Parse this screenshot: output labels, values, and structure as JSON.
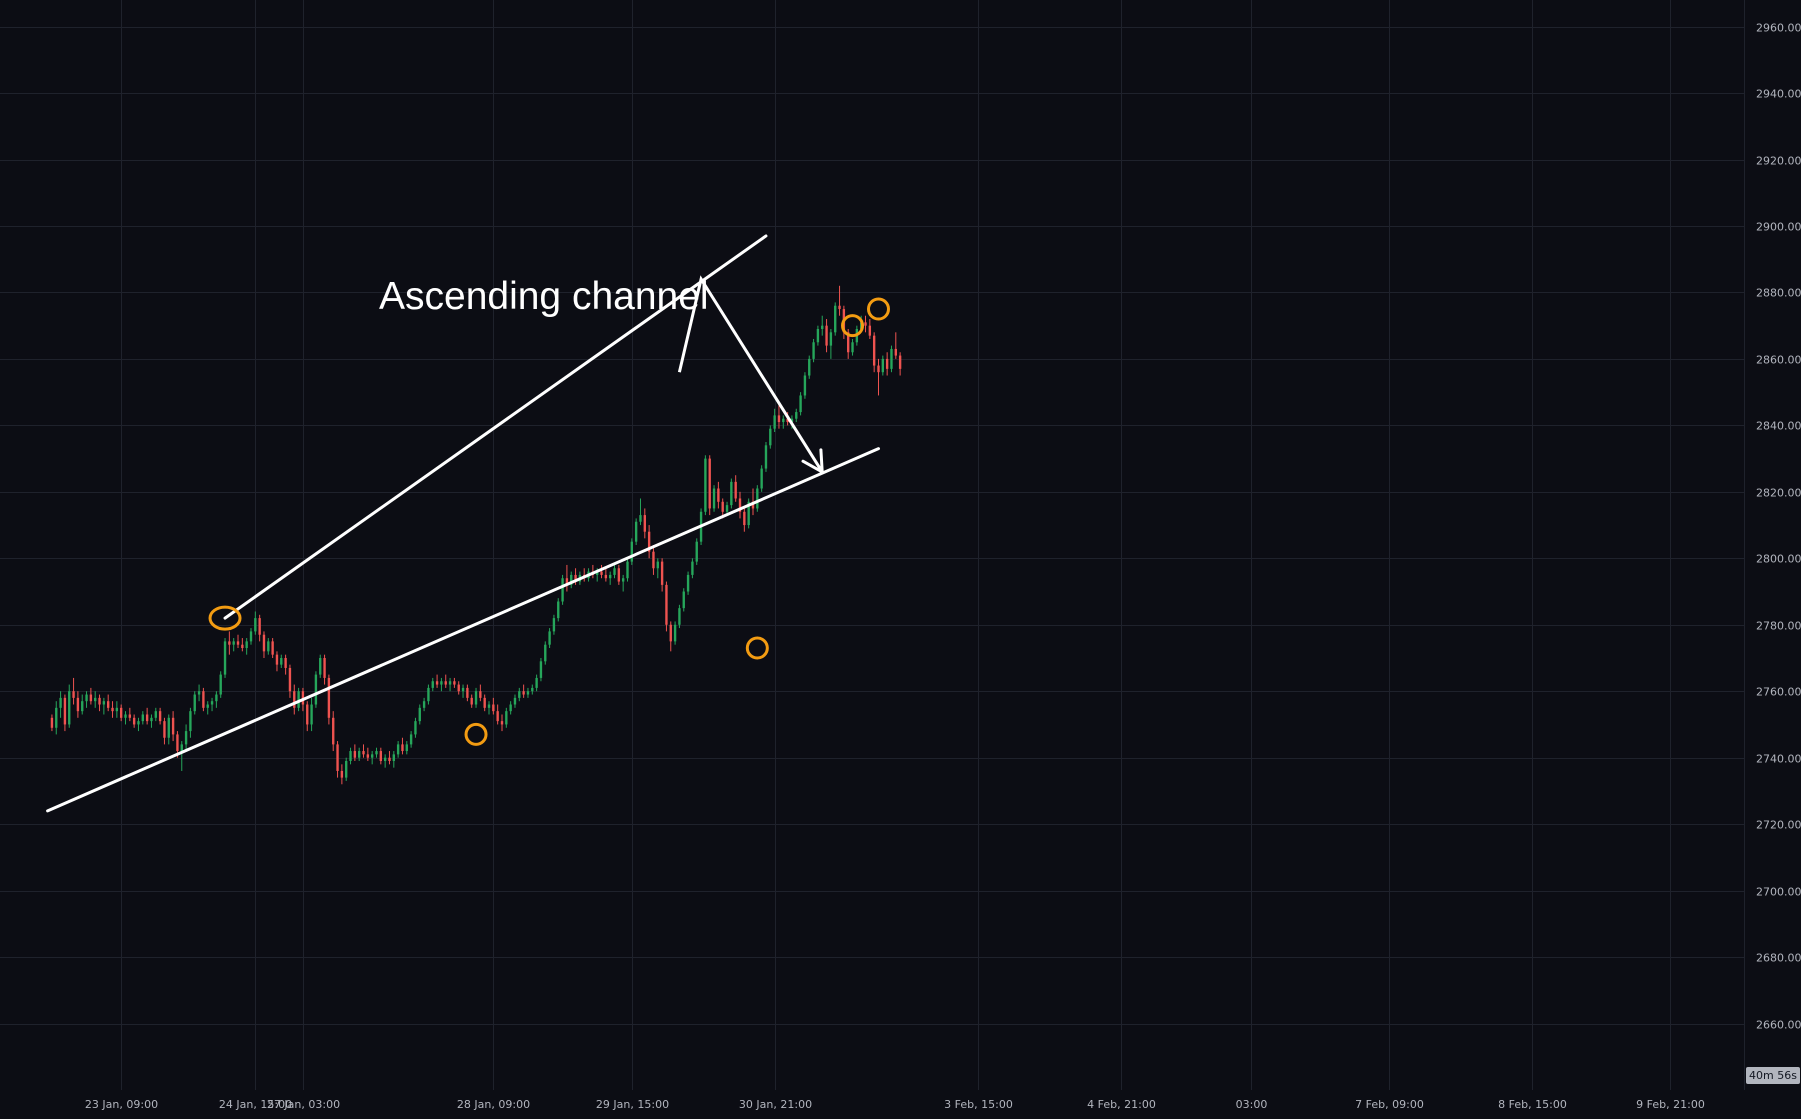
{
  "chart_data": {
    "type": "candlestick",
    "annotation": "Ascending channel",
    "countdown": "40m 56s",
    "colors": {
      "background": "#0c0d14",
      "grid": "#1f222c",
      "up": "#26a65b",
      "down": "#ef5350",
      "drawing": "#ffffff",
      "marker": "#f39c12",
      "axis_text": "#b2b5be",
      "countdown_bg": "#b2b5be"
    },
    "ylim": [
      2640,
      2968
    ],
    "y_ticks": [
      2660,
      2680,
      2700,
      2720,
      2740,
      2760,
      2780,
      2800,
      2820,
      2840,
      2860,
      2880,
      2900,
      2920,
      2940,
      2960
    ],
    "y_tick_labels": [
      "2660.00",
      "2680.00",
      "2700.00",
      "2720.00",
      "2740.00",
      "2760.00",
      "2780.00",
      "2800.00",
      "2820.00",
      "2840.00",
      "2860.00",
      "2880.00",
      "2900.00",
      "2920.00",
      "2940.00",
      "2960.00"
    ],
    "x_ticks": [
      "23 Jan, 09:00",
      "24 Jan, 15:00",
      "27 Jan, 03:00",
      "28 Jan, 09:00",
      "29 Jan, 15:00",
      "30 Jan, 21:00",
      "3 Feb, 15:00",
      "4 Feb, 21:00",
      "03:00",
      "7 Feb, 09:00",
      "8 Feb, 15:00",
      "9 Feb, 21:00"
    ],
    "x_tick_bars": [
      16,
      47,
      58,
      102,
      134,
      167,
      214,
      247,
      277,
      309,
      342,
      374
    ],
    "x_range": [
      -12,
      391
    ],
    "ohlc": [
      [
        2752,
        2753,
        2748,
        2749
      ],
      [
        2749,
        2757,
        2747,
        2755
      ],
      [
        2755,
        2760,
        2752,
        2758
      ],
      [
        2758,
        2759,
        2748,
        2750
      ],
      [
        2750,
        2762,
        2749,
        2760
      ],
      [
        2760,
        2764,
        2756,
        2758
      ],
      [
        2758,
        2760,
        2752,
        2754
      ],
      [
        2754,
        2759,
        2753,
        2757
      ],
      [
        2757,
        2760,
        2755,
        2759
      ],
      [
        2759,
        2761,
        2756,
        2757
      ],
      [
        2757,
        2760,
        2755,
        2758
      ],
      [
        2758,
        2759,
        2754,
        2756
      ],
      [
        2756,
        2758,
        2753,
        2757
      ],
      [
        2757,
        2759,
        2754,
        2755
      ],
      [
        2755,
        2757,
        2752,
        2754
      ],
      [
        2754,
        2757,
        2752,
        2755
      ],
      [
        2755,
        2756,
        2751,
        2752
      ],
      [
        2752,
        2754,
        2750,
        2753
      ],
      [
        2753,
        2755,
        2751,
        2752
      ],
      [
        2752,
        2753,
        2749,
        2750
      ],
      [
        2750,
        2752,
        2748,
        2751
      ],
      [
        2751,
        2754,
        2750,
        2753
      ],
      [
        2753,
        2755,
        2750,
        2751
      ],
      [
        2751,
        2753,
        2749,
        2752
      ],
      [
        2752,
        2755,
        2751,
        2754
      ],
      [
        2754,
        2755,
        2750,
        2751
      ],
      [
        2751,
        2752,
        2744,
        2746
      ],
      [
        2746,
        2753,
        2744,
        2752
      ],
      [
        2752,
        2754,
        2745,
        2747
      ],
      [
        2747,
        2748,
        2740,
        2742
      ],
      [
        2742,
        2745,
        2736,
        2744
      ],
      [
        2744,
        2750,
        2742,
        2748
      ],
      [
        2748,
        2755,
        2746,
        2754
      ],
      [
        2754,
        2760,
        2753,
        2759
      ],
      [
        2759,
        2762,
        2757,
        2760
      ],
      [
        2760,
        2761,
        2754,
        2755
      ],
      [
        2755,
        2757,
        2753,
        2756
      ],
      [
        2756,
        2758,
        2754,
        2757
      ],
      [
        2757,
        2760,
        2755,
        2759
      ],
      [
        2759,
        2766,
        2758,
        2765
      ],
      [
        2765,
        2776,
        2764,
        2775
      ],
      [
        2775,
        2778,
        2771,
        2774
      ],
      [
        2774,
        2776,
        2772,
        2775
      ],
      [
        2775,
        2777,
        2773,
        2774
      ],
      [
        2774,
        2776,
        2772,
        2773
      ],
      [
        2773,
        2776,
        2771,
        2775
      ],
      [
        2775,
        2779,
        2774,
        2778
      ],
      [
        2778,
        2784,
        2777,
        2782
      ],
      [
        2782,
        2783,
        2775,
        2777
      ],
      [
        2777,
        2778,
        2770,
        2772
      ],
      [
        2772,
        2776,
        2771,
        2775
      ],
      [
        2775,
        2776,
        2770,
        2771
      ],
      [
        2771,
        2772,
        2766,
        2768
      ],
      [
        2768,
        2771,
        2767,
        2770
      ],
      [
        2770,
        2771,
        2765,
        2767
      ],
      [
        2767,
        2768,
        2758,
        2760
      ],
      [
        2760,
        2762,
        2753,
        2755
      ],
      [
        2755,
        2761,
        2754,
        2760
      ],
      [
        2760,
        2761,
        2754,
        2756
      ],
      [
        2756,
        2757,
        2748,
        2750
      ],
      [
        2750,
        2758,
        2748,
        2756
      ],
      [
        2756,
        2766,
        2755,
        2765
      ],
      [
        2765,
        2771,
        2764,
        2770
      ],
      [
        2770,
        2771,
        2762,
        2764
      ],
      [
        2764,
        2765,
        2750,
        2752
      ],
      [
        2752,
        2754,
        2742,
        2744
      ],
      [
        2744,
        2745,
        2734,
        2736
      ],
      [
        2736,
        2738,
        2732,
        2734
      ],
      [
        2734,
        2740,
        2733,
        2739
      ],
      [
        2739,
        2743,
        2738,
        2742
      ],
      [
        2742,
        2744,
        2739,
        2740
      ],
      [
        2740,
        2743,
        2739,
        2742
      ],
      [
        2742,
        2744,
        2740,
        2741
      ],
      [
        2741,
        2743,
        2739,
        2740
      ],
      [
        2740,
        2742,
        2738,
        2741
      ],
      [
        2741,
        2743,
        2740,
        2742
      ],
      [
        2742,
        2743,
        2738,
        2739
      ],
      [
        2739,
        2741,
        2737,
        2740
      ],
      [
        2740,
        2742,
        2738,
        2739
      ],
      [
        2739,
        2742,
        2737,
        2741
      ],
      [
        2741,
        2745,
        2740,
        2744
      ],
      [
        2744,
        2746,
        2741,
        2742
      ],
      [
        2742,
        2745,
        2741,
        2744
      ],
      [
        2744,
        2748,
        2743,
        2747
      ],
      [
        2747,
        2752,
        2746,
        2751
      ],
      [
        2751,
        2756,
        2750,
        2755
      ],
      [
        2755,
        2758,
        2754,
        2757
      ],
      [
        2757,
        2762,
        2756,
        2761
      ],
      [
        2761,
        2764,
        2760,
        2763
      ],
      [
        2763,
        2765,
        2761,
        2762
      ],
      [
        2762,
        2764,
        2760,
        2763
      ],
      [
        2763,
        2765,
        2761,
        2762
      ],
      [
        2762,
        2764,
        2760,
        2763
      ],
      [
        2763,
        2764,
        2761,
        2762
      ],
      [
        2762,
        2763,
        2759,
        2760
      ],
      [
        2760,
        2762,
        2758,
        2761
      ],
      [
        2761,
        2762,
        2757,
        2758
      ],
      [
        2758,
        2759,
        2755,
        2756
      ],
      [
        2756,
        2761,
        2755,
        2760
      ],
      [
        2760,
        2762,
        2757,
        2758
      ],
      [
        2758,
        2759,
        2754,
        2755
      ],
      [
        2755,
        2757,
        2753,
        2756
      ],
      [
        2756,
        2758,
        2753,
        2754
      ],
      [
        2754,
        2756,
        2750,
        2751
      ],
      [
        2751,
        2753,
        2748,
        2750
      ],
      [
        2750,
        2755,
        2749,
        2754
      ],
      [
        2754,
        2757,
        2753,
        2756
      ],
      [
        2756,
        2759,
        2755,
        2758
      ],
      [
        2758,
        2761,
        2757,
        2760
      ],
      [
        2760,
        2762,
        2758,
        2759
      ],
      [
        2759,
        2761,
        2758,
        2760
      ],
      [
        2760,
        2762,
        2759,
        2761
      ],
      [
        2761,
        2765,
        2760,
        2764
      ],
      [
        2764,
        2770,
        2763,
        2769
      ],
      [
        2769,
        2775,
        2768,
        2774
      ],
      [
        2774,
        2779,
        2773,
        2778
      ],
      [
        2778,
        2783,
        2777,
        2782
      ],
      [
        2782,
        2788,
        2781,
        2787
      ],
      [
        2787,
        2795,
        2786,
        2794
      ],
      [
        2794,
        2798,
        2790,
        2792
      ],
      [
        2792,
        2796,
        2791,
        2795
      ],
      [
        2795,
        2797,
        2792,
        2793
      ],
      [
        2793,
        2796,
        2792,
        2795
      ],
      [
        2795,
        2797,
        2793,
        2794
      ],
      [
        2794,
        2797,
        2793,
        2796
      ],
      [
        2796,
        2798,
        2794,
        2795
      ],
      [
        2795,
        2797,
        2793,
        2796
      ],
      [
        2796,
        2798,
        2794,
        2795
      ],
      [
        2795,
        2797,
        2793,
        2794
      ],
      [
        2794,
        2796,
        2792,
        2795
      ],
      [
        2795,
        2798,
        2794,
        2797
      ],
      [
        2797,
        2798,
        2792,
        2793
      ],
      [
        2793,
        2795,
        2790,
        2794
      ],
      [
        2794,
        2800,
        2793,
        2799
      ],
      [
        2799,
        2806,
        2798,
        2805
      ],
      [
        2805,
        2812,
        2804,
        2811
      ],
      [
        2811,
        2818,
        2810,
        2813
      ],
      [
        2813,
        2815,
        2806,
        2808
      ],
      [
        2808,
        2810,
        2800,
        2802
      ],
      [
        2802,
        2804,
        2795,
        2797
      ],
      [
        2797,
        2800,
        2794,
        2799
      ],
      [
        2799,
        2800,
        2790,
        2792
      ],
      [
        2792,
        2793,
        2778,
        2780
      ],
      [
        2780,
        2781,
        2772,
        2775
      ],
      [
        2775,
        2781,
        2774,
        2780
      ],
      [
        2780,
        2786,
        2779,
        2785
      ],
      [
        2785,
        2791,
        2784,
        2790
      ],
      [
        2790,
        2796,
        2789,
        2795
      ],
      [
        2795,
        2800,
        2794,
        2799
      ],
      [
        2799,
        2806,
        2798,
        2805
      ],
      [
        2805,
        2815,
        2804,
        2814
      ],
      [
        2814,
        2831,
        2813,
        2830
      ],
      [
        2830,
        2831,
        2813,
        2815
      ],
      [
        2815,
        2822,
        2814,
        2821
      ],
      [
        2821,
        2823,
        2815,
        2817
      ],
      [
        2817,
        2818,
        2812,
        2814
      ],
      [
        2814,
        2817,
        2813,
        2816
      ],
      [
        2816,
        2824,
        2815,
        2823
      ],
      [
        2823,
        2825,
        2817,
        2818
      ],
      [
        2818,
        2820,
        2812,
        2814
      ],
      [
        2814,
        2815,
        2808,
        2810
      ],
      [
        2810,
        2818,
        2809,
        2817
      ],
      [
        2817,
        2821,
        2813,
        2815
      ],
      [
        2815,
        2822,
        2814,
        2821
      ],
      [
        2821,
        2828,
        2820,
        2827
      ],
      [
        2827,
        2835,
        2826,
        2834
      ],
      [
        2834,
        2840,
        2833,
        2839
      ],
      [
        2839,
        2845,
        2838,
        2843
      ],
      [
        2843,
        2846,
        2839,
        2841
      ],
      [
        2841,
        2843,
        2839,
        2842
      ],
      [
        2842,
        2844,
        2840,
        2841
      ],
      [
        2841,
        2843,
        2839,
        2842
      ],
      [
        2842,
        2845,
        2841,
        2844
      ],
      [
        2844,
        2850,
        2843,
        2849
      ],
      [
        2849,
        2856,
        2848,
        2855
      ],
      [
        2855,
        2861,
        2854,
        2860
      ],
      [
        2860,
        2866,
        2859,
        2865
      ],
      [
        2865,
        2870,
        2864,
        2869
      ],
      [
        2869,
        2873,
        2867,
        2870
      ],
      [
        2870,
        2872,
        2862,
        2864
      ],
      [
        2864,
        2869,
        2860,
        2868
      ],
      [
        2868,
        2877,
        2867,
        2876
      ],
      [
        2876,
        2882,
        2873,
        2875
      ],
      [
        2875,
        2876,
        2866,
        2868
      ],
      [
        2868,
        2869,
        2860,
        2862
      ],
      [
        2862,
        2866,
        2861,
        2865
      ],
      [
        2865,
        2870,
        2864,
        2869
      ],
      [
        2869,
        2873,
        2868,
        2871
      ],
      [
        2871,
        2873,
        2868,
        2870
      ],
      [
        2870,
        2872,
        2866,
        2867
      ],
      [
        2867,
        2868,
        2856,
        2858
      ],
      [
        2858,
        2860,
        2849,
        2856
      ],
      [
        2856,
        2861,
        2855,
        2860
      ],
      [
        2860,
        2862,
        2855,
        2857
      ],
      [
        2857,
        2864,
        2856,
        2863
      ],
      [
        2863,
        2868,
        2860,
        2861
      ],
      [
        2861,
        2862,
        2855,
        2857
      ]
    ],
    "channel": {
      "upper": [
        [
          40,
          2782
        ],
        [
          165,
          2897
        ]
      ],
      "lower": [
        [
          -1,
          2724
        ],
        [
          191,
          2833
        ]
      ]
    },
    "projection": [
      [
        145,
        2856
      ],
      [
        150,
        2884
      ],
      [
        178,
        2826
      ]
    ],
    "markers": [
      [
        40,
        2782
      ],
      [
        98,
        2747
      ],
      [
        163,
        2773
      ],
      [
        185,
        2870
      ],
      [
        191,
        2875
      ]
    ]
  }
}
